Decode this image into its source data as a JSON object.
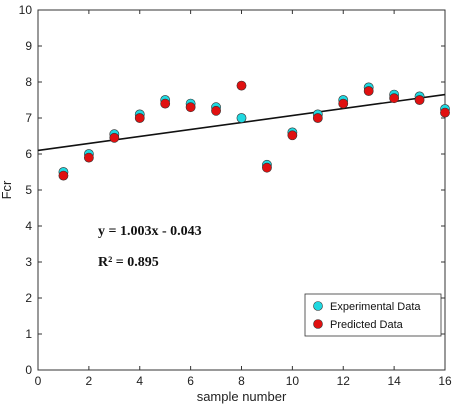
{
  "chart_data": {
    "type": "scatter",
    "xlabel": "sample number",
    "ylabel": "Fcr",
    "xlim": [
      0,
      16
    ],
    "ylim": [
      0,
      10
    ],
    "xticks": [
      0,
      2,
      4,
      6,
      8,
      10,
      12,
      14,
      16
    ],
    "yticks": [
      0,
      1,
      2,
      3,
      4,
      5,
      6,
      7,
      8,
      9,
      10
    ],
    "grid": false,
    "legend_position": "bottom-right",
    "series": [
      {
        "name": "Experimental Data",
        "color": "#20d8e0",
        "x": [
          1,
          2,
          3,
          4,
          5,
          6,
          7,
          8,
          9,
          10,
          11,
          12,
          13,
          14,
          15,
          16
        ],
        "y": [
          5.5,
          6.0,
          6.55,
          7.1,
          7.5,
          7.4,
          7.3,
          7.0,
          5.7,
          6.6,
          7.1,
          7.5,
          7.85,
          7.65,
          7.6,
          7.25
        ]
      },
      {
        "name": "Predicted Data",
        "color": "#e01010",
        "x": [
          1,
          2,
          3,
          4,
          5,
          6,
          7,
          8,
          9,
          10,
          11,
          12,
          13,
          14,
          15,
          16
        ],
        "y": [
          5.4,
          5.9,
          6.45,
          7.0,
          7.4,
          7.3,
          7.2,
          7.9,
          5.62,
          6.52,
          7.0,
          7.4,
          7.75,
          7.55,
          7.5,
          7.15
        ]
      }
    ],
    "trendline": {
      "x": [
        0,
        16
      ],
      "y": [
        6.1,
        7.65
      ],
      "color": "#111111"
    },
    "annotations": {
      "equation": "y = 1.003x - 0.043",
      "r2": "R² = 0.895"
    }
  }
}
